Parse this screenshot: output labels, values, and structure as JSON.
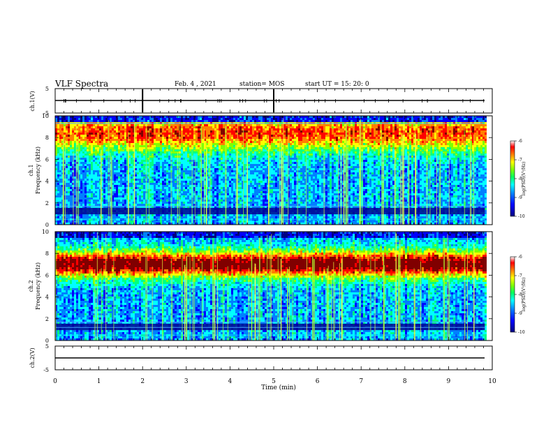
{
  "header": {
    "title": "VLF Spectra",
    "date": "Feb. 4 , 2021",
    "station": "station= MOS",
    "start": "start UT =  15: 20: 0"
  },
  "chart_data": [
    {
      "type": "line",
      "panel": "ch1-waveform",
      "ylabel": "ch.1(V)",
      "ylim": [
        -5,
        5
      ],
      "yticks": [
        5,
        -5
      ],
      "series": [
        {
          "x": [
            0,
            9.83
          ],
          "values": [
            0,
            0
          ]
        }
      ]
    },
    {
      "type": "heatmap",
      "panel": "ch1-spectrogram",
      "ylabel_line1": "ch.1",
      "ylabel_line2": "Frequency (kHz)",
      "ylim": [
        0,
        10
      ],
      "yticks": [
        0,
        2,
        4,
        6,
        8,
        10
      ],
      "x_range": [
        0,
        9.83
      ],
      "dominant_band_khz": [
        7.5,
        9.5
      ],
      "bright_lines_khz": [
        0.5,
        1.7,
        9.3
      ],
      "colorbar": {
        "label": "log(PSD)(V²/Hz)",
        "ticks": [
          -6,
          -7,
          -8,
          -9,
          -10
        ]
      }
    },
    {
      "type": "heatmap",
      "panel": "ch2-spectrogram",
      "ylabel_line1": "ch.2",
      "ylabel_line2": "Frequency (kHz)",
      "ylim": [
        0,
        10
      ],
      "yticks": [
        0,
        2,
        4,
        6,
        8,
        10
      ],
      "x_range": [
        0,
        9.83
      ],
      "dominant_band_khz": [
        6.0,
        8.5
      ],
      "bright_lines_khz": [
        0.5,
        1.2,
        1.7
      ],
      "colorbar": {
        "label": "log(PSD)(V²/Hz)",
        "ticks": [
          -6,
          -7,
          -8,
          -9,
          -10
        ]
      }
    },
    {
      "type": "line",
      "panel": "ch2-waveform",
      "ylabel": "ch.2(V)",
      "ylim": [
        -5,
        5
      ],
      "yticks": [
        5,
        -5
      ],
      "series": [
        {
          "x": [
            0,
            9.83
          ],
          "values": [
            0,
            0
          ]
        }
      ]
    }
  ],
  "xaxis": {
    "label": "Time (min)",
    "ticks": [
      0,
      1,
      2,
      3,
      4,
      5,
      6,
      7,
      8,
      9,
      10
    ],
    "xlim": [
      0,
      10
    ]
  },
  "colormap": [
    "#000083",
    "#0000ff",
    "#0080ff",
    "#00ffff",
    "#00ff80",
    "#80ff00",
    "#ffff00",
    "#ff8000",
    "#ff0000",
    "#800000"
  ]
}
